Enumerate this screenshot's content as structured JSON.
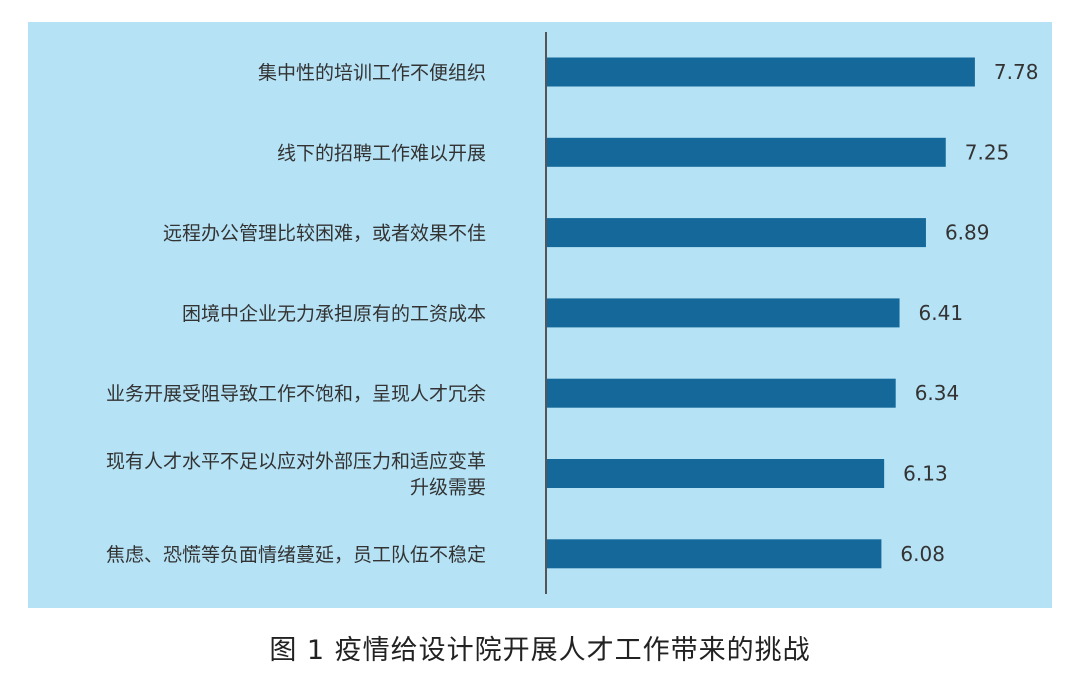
{
  "caption": "图 1 疫情给设计院开展人才工作带来的挑战",
  "colors": {
    "panel_bg": "#b5e2f5",
    "bar": "#15699a",
    "axis": "#555555",
    "text": "#333333"
  },
  "chart_data": {
    "type": "bar",
    "orientation": "horizontal",
    "categories": [
      "集中性的培训工作不便组织",
      "线下的招聘工作难以开展",
      "远程办公管理比较困难，或者效果不佳",
      "困境中企业无力承担原有的工资成本",
      "业务开展受阻导致工作不饱和，呈现人才冗余",
      "现有人才水平不足以应对外部压力和适应变革\n升级需要",
      "焦虑、恐慌等负面情绪蔓延，员工队伍不稳定"
    ],
    "values": [
      7.78,
      7.25,
      6.89,
      6.41,
      6.34,
      6.13,
      6.08
    ],
    "value_labels": [
      "7.78",
      "7.25",
      "6.89",
      "6.41",
      "6.34",
      "6.13",
      "6.08"
    ],
    "xlim": [
      0,
      8.4
    ],
    "grid": false,
    "legend": "none"
  }
}
